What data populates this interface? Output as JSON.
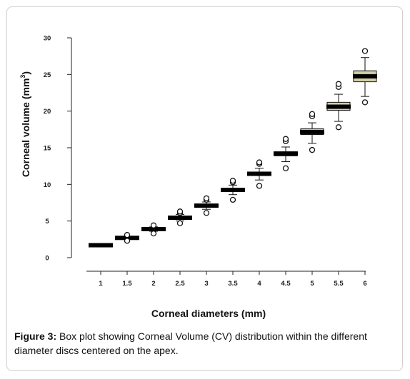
{
  "chart_data": {
    "type": "box",
    "xlabel": "Corneal diameters (mm)",
    "ylabel": "Corneal volume (mm",
    "ylabel_sup": "3",
    "ylabel_end": ")",
    "ylim": [
      0,
      30
    ],
    "yticks": [
      "0",
      "5",
      "10",
      "15",
      "20",
      "25",
      "30"
    ],
    "categories": [
      "1",
      "1.5",
      "2",
      "2.5",
      "3",
      "3.5",
      "4",
      "4.5",
      "5",
      "5.5",
      "6"
    ],
    "box_fill": "#d6d0a8",
    "series": [
      {
        "values": [
          {
            "q1": 1.6,
            "median": 1.7,
            "q3": 1.8,
            "whisker_low": 1.6,
            "whisker_high": 1.8,
            "outliers": []
          },
          {
            "q1": 2.6,
            "median": 2.7,
            "q3": 2.8,
            "whisker_low": 2.5,
            "whisker_high": 2.9,
            "outliers": [
              2.3,
              3.1
            ]
          },
          {
            "q1": 3.75,
            "median": 3.9,
            "q3": 4.0,
            "whisker_low": 3.6,
            "whisker_high": 4.2,
            "outliers": [
              3.3,
              4.4
            ]
          },
          {
            "q1": 5.3,
            "median": 5.45,
            "q3": 5.6,
            "whisker_low": 5.0,
            "whisker_high": 5.9,
            "outliers": [
              4.7,
              6.1,
              6.3
            ]
          },
          {
            "q1": 6.95,
            "median": 7.1,
            "q3": 7.25,
            "whisker_low": 6.6,
            "whisker_high": 7.6,
            "outliers": [
              6.1,
              7.9,
              8.1
            ]
          },
          {
            "q1": 9.1,
            "median": 9.25,
            "q3": 9.4,
            "whisker_low": 8.6,
            "whisker_high": 9.9,
            "outliers": [
              7.9,
              10.3,
              10.5
            ]
          },
          {
            "q1": 11.2,
            "median": 11.45,
            "q3": 11.65,
            "whisker_low": 10.6,
            "whisker_high": 12.2,
            "outliers": [
              9.8,
              12.8,
              13.0
            ]
          },
          {
            "q1": 13.9,
            "median": 14.2,
            "q3": 14.45,
            "whisker_low": 13.1,
            "whisker_high": 15.1,
            "outliers": [
              12.2,
              15.9,
              16.2
            ]
          },
          {
            "q1": 16.8,
            "median": 17.15,
            "q3": 17.6,
            "whisker_low": 15.6,
            "whisker_high": 18.4,
            "outliers": [
              14.7,
              19.3,
              19.6
            ]
          },
          {
            "q1": 20.1,
            "median": 20.6,
            "q3": 21.2,
            "whisker_low": 18.6,
            "whisker_high": 22.3,
            "outliers": [
              17.8,
              23.3,
              23.7
            ]
          },
          {
            "q1": 24.0,
            "median": 24.75,
            "q3": 25.5,
            "whisker_low": 22.0,
            "whisker_high": 27.3,
            "outliers": [
              21.2,
              28.2
            ]
          }
        ]
      }
    ]
  },
  "caption": {
    "label": "Figure 3:",
    "text": " Box plot showing Corneal Volume (CV) distribution within the different diameter discs centered on the apex."
  }
}
